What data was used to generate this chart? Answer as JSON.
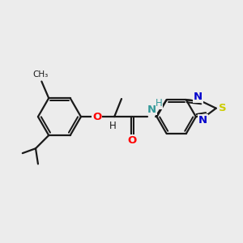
{
  "background_color": "#ececec",
  "bond_color": "#1a1a1a",
  "oxygen_color": "#ff0000",
  "nitrogen_color": "#0000cc",
  "sulfur_color": "#cccc00",
  "nh_color": "#339999",
  "line_width": 1.6,
  "figsize": [
    3.0,
    3.0
  ],
  "dpi": 100,
  "xlim": [
    0,
    10
  ],
  "ylim": [
    0,
    10
  ]
}
